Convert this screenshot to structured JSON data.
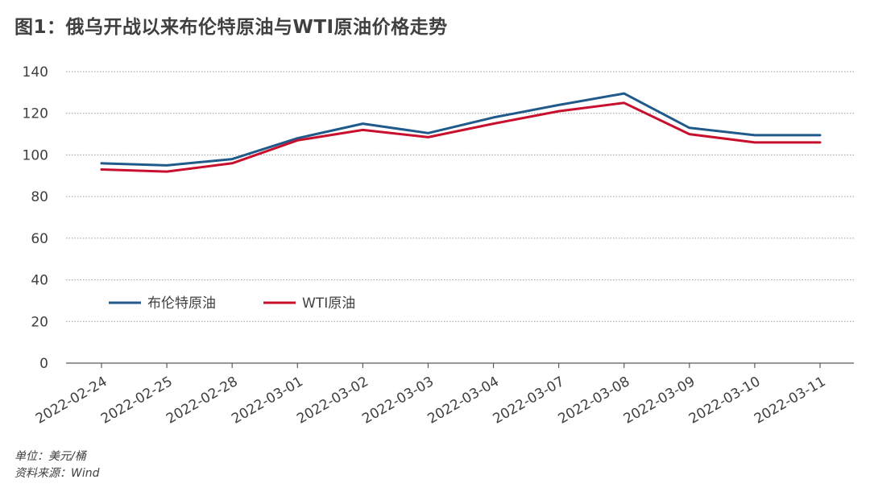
{
  "title": "图1：俄乌开战以来布伦特原油与WTI原油价格走势",
  "notes": {
    "unit": "单位：美元/桶",
    "source": "资料来源：Wind"
  },
  "chart_data": {
    "type": "line",
    "categories": [
      "2022-02-24",
      "2022-02-25",
      "2022-02-28",
      "2022-03-01",
      "2022-03-02",
      "2022-03-03",
      "2022-03-04",
      "2022-03-07",
      "2022-03-08",
      "2022-03-09",
      "2022-03-10",
      "2022-03-11"
    ],
    "series": [
      {
        "name": "布伦特原油",
        "color": "#1f5a8a",
        "values": [
          96,
          95,
          98,
          108,
          115,
          110.5,
          118,
          124,
          129.5,
          113,
          109.5,
          109.5
        ]
      },
      {
        "name": "WTI原油",
        "color": "#c8102e",
        "values": [
          93,
          92,
          96,
          107,
          112,
          108.5,
          115,
          121,
          125,
          110,
          106,
          106
        ]
      }
    ],
    "ylim": [
      0,
      140
    ],
    "yticks": [
      0,
      20,
      40,
      60,
      80,
      100,
      120,
      140
    ],
    "grid": true,
    "legend_position": "inside-left"
  }
}
